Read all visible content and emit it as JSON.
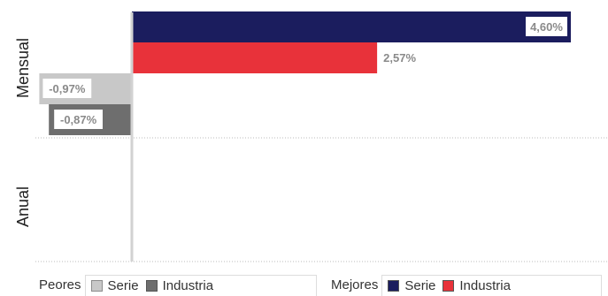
{
  "chart_data": {
    "type": "bar",
    "orientation": "horizontal",
    "categories": [
      "Mensual",
      "Anual"
    ],
    "series": [
      {
        "group": "Peores",
        "name": "Serie",
        "values": [
          -0.97,
          null
        ],
        "labels": [
          "-0,97%",
          ""
        ],
        "color": "#c8c8c8"
      },
      {
        "group": "Peores",
        "name": "Industria",
        "values": [
          -0.87,
          null
        ],
        "labels": [
          "-0,87%",
          ""
        ],
        "color": "#6e6e6e"
      },
      {
        "group": "Mejores",
        "name": "Serie",
        "values": [
          4.6,
          null
        ],
        "labels": [
          "4,60%",
          ""
        ],
        "color": "#1b1d5e"
      },
      {
        "group": "Mejores",
        "name": "Industria",
        "values": [
          2.57,
          null
        ],
        "labels": [
          "2,57%",
          ""
        ],
        "color": "#e8323a"
      }
    ],
    "xlim": [
      -1.0,
      4.8
    ],
    "grid": true,
    "legend_position": "bottom"
  },
  "legend": {
    "peores": {
      "title": "Peores",
      "items": [
        {
          "label": "Serie",
          "color": "#c8c8c8"
        },
        {
          "label": "Industria",
          "color": "#6e6e6e"
        }
      ]
    },
    "mejores": {
      "title": "Mejores",
      "items": [
        {
          "label": "Serie",
          "color": "#1b1d5e"
        },
        {
          "label": "Industria",
          "color": "#e8323a"
        }
      ]
    }
  }
}
